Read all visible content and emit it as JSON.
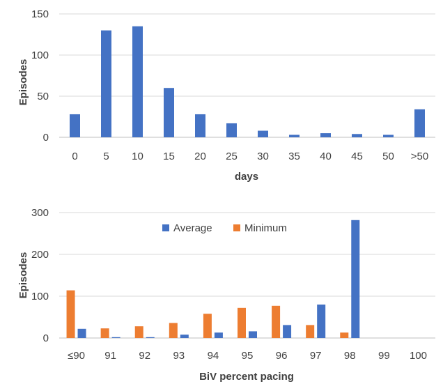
{
  "chart_data": [
    {
      "type": "bar",
      "categories": [
        "0",
        "5",
        "10",
        "15",
        "20",
        "25",
        "30",
        "35",
        "40",
        "45",
        "50",
        ">50"
      ],
      "series": [
        {
          "values": [
            28,
            130,
            135,
            60,
            28,
            17,
            8,
            3,
            5,
            4,
            3,
            34
          ],
          "color": "#4472c4"
        }
      ],
      "xlabel": "days",
      "ylabel": "Episodes",
      "ylim": [
        0,
        150
      ],
      "yticks": [
        0,
        50,
        100,
        150
      ],
      "grid": true,
      "legend": "none"
    },
    {
      "type": "bar",
      "categories": [
        "≤90",
        "91",
        "92",
        "93",
        "94",
        "95",
        "96",
        "97",
        "98",
        "99",
        "100"
      ],
      "series": [
        {
          "name": "Average",
          "values": [
            22,
            2,
            2,
            8,
            13,
            16,
            31,
            80,
            282,
            0,
            0
          ],
          "color": "#4472c4"
        },
        {
          "name": "Minimum",
          "values": [
            114,
            23,
            28,
            36,
            58,
            72,
            77,
            31,
            13,
            0,
            0
          ],
          "color": "#ed7d31"
        }
      ],
      "xlabel": "BiV percent pacing",
      "ylabel": "Episodes",
      "ylim": [
        0,
        300
      ],
      "yticks": [
        0,
        100,
        200,
        300
      ],
      "grid": true,
      "legend": "top-center"
    }
  ]
}
